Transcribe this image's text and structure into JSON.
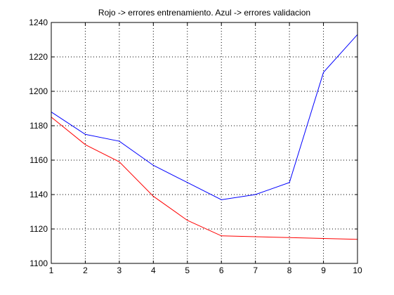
{
  "chart_data": {
    "type": "line",
    "title": "Rojo -> errores entrenamiento. Azul -> errores validacion",
    "xlabel": "",
    "ylabel": "",
    "x": [
      1,
      2,
      3,
      4,
      5,
      6,
      7,
      8,
      9,
      10
    ],
    "xlim": [
      1,
      10
    ],
    "ylim": [
      1100,
      1240
    ],
    "xticks": [
      1,
      2,
      3,
      4,
      5,
      6,
      7,
      8,
      9,
      10
    ],
    "yticks": [
      1100,
      1120,
      1140,
      1160,
      1180,
      1200,
      1220,
      1240
    ],
    "grid": true,
    "grid_style": "dotted",
    "legend": "none",
    "series": [
      {
        "color": "#0000ff",
        "values": [
          1188,
          1175,
          1171,
          1157,
          1147,
          1137,
          1140,
          1147,
          1211,
          1233
        ]
      },
      {
        "color": "#ff0000",
        "values": [
          1185,
          1169,
          1159,
          1139,
          1125,
          1116,
          1115.5,
          1115,
          1114.5,
          1114
        ]
      }
    ]
  }
}
